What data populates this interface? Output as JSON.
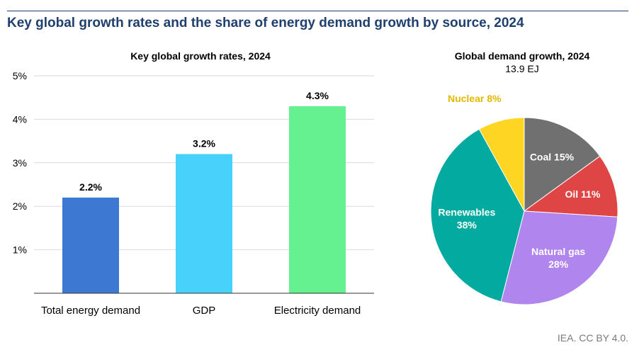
{
  "title": "Key global growth rates and the share of energy demand growth by source, 2024",
  "credit": "IEA. CC BY 4.0.",
  "chart_data": [
    {
      "type": "bar",
      "title": "Key global growth rates, 2024",
      "categories": [
        "Total energy demand",
        "GDP",
        "Electricity demand"
      ],
      "values": [
        2.2,
        3.2,
        4.3
      ],
      "value_labels": [
        "2.2%",
        "3.2%",
        "4.3%"
      ],
      "colors": [
        "#3d78d3",
        "#48d1fb",
        "#65f18f"
      ],
      "ylim": [
        0,
        5
      ],
      "yticks": [
        1,
        2,
        3,
        4,
        5
      ],
      "ytick_labels": [
        "1%",
        "2%",
        "3%",
        "4%",
        "5%"
      ],
      "grid": true,
      "xlabel": "",
      "ylabel": ""
    },
    {
      "type": "pie",
      "title": "Global demand growth, 2024",
      "subtitle": "13.9 EJ",
      "slices": [
        {
          "label": "Coal",
          "pct_label": "15%",
          "value": 15,
          "color": "#707070",
          "label_color": "#ffffff"
        },
        {
          "label": "Oil",
          "pct_label": "11%",
          "value": 11,
          "color": "#e04545",
          "label_color": "#ffffff"
        },
        {
          "label": "Natural gas",
          "pct_label": "28%",
          "value": 28,
          "color": "#b085ee",
          "label_color": "#ffffff"
        },
        {
          "label": "Renewables",
          "pct_label": "38%",
          "value": 38,
          "color": "#03aaa0",
          "label_color": "#ffffff"
        },
        {
          "label": "Nuclear",
          "pct_label": "8%",
          "value": 8,
          "color": "#fdd522",
          "label_color": "#e5b800"
        }
      ]
    }
  ]
}
